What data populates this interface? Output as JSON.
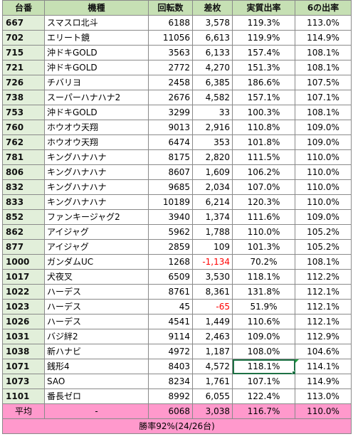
{
  "headers": {
    "num": "台番",
    "model": "機種",
    "spins": "回転数",
    "diff": "差枚",
    "rate": "実質出率",
    "rate6": "6の出率"
  },
  "rows": [
    {
      "num": "667",
      "model": "スマスロ北斗",
      "spins": "6188",
      "diff": "3,578",
      "rate": "119.3%",
      "rate6": "113.0%"
    },
    {
      "num": "702",
      "model": "エリート鏡",
      "spins": "11056",
      "diff": "6,613",
      "rate": "119.9%",
      "rate6": "114.9%"
    },
    {
      "num": "715",
      "model": "沖ドキGOLD",
      "spins": "3563",
      "diff": "6,133",
      "rate": "157.4%",
      "rate6": "108.1%"
    },
    {
      "num": "721",
      "model": "沖ドキGOLD",
      "spins": "2772",
      "diff": "4,270",
      "rate": "151.3%",
      "rate6": "108.1%"
    },
    {
      "num": "726",
      "model": "チバリヨ",
      "spins": "2458",
      "diff": "6,385",
      "rate": "186.6%",
      "rate6": "107.5%"
    },
    {
      "num": "738",
      "model": "スーパーハナハナ2",
      "spins": "2676",
      "diff": "4,582",
      "rate": "157.1%",
      "rate6": "107.1%"
    },
    {
      "num": "753",
      "model": "沖ドキGOLD",
      "spins": "3299",
      "diff": "33",
      "rate": "100.3%",
      "rate6": "108.1%"
    },
    {
      "num": "760",
      "model": "ホウオウ天翔",
      "spins": "9013",
      "diff": "2,916",
      "rate": "110.8%",
      "rate6": "109.0%"
    },
    {
      "num": "762",
      "model": "ホウオウ天翔",
      "spins": "6474",
      "diff": "353",
      "rate": "101.8%",
      "rate6": "109.0%"
    },
    {
      "num": "781",
      "model": "キングハナハナ",
      "spins": "8175",
      "diff": "2,820",
      "rate": "111.5%",
      "rate6": "110.0%"
    },
    {
      "num": "806",
      "model": "キングハナハナ",
      "spins": "8607",
      "diff": "1,609",
      "rate": "106.2%",
      "rate6": "110.0%"
    },
    {
      "num": "832",
      "model": "キングハナハナ",
      "spins": "9685",
      "diff": "2,034",
      "rate": "107.0%",
      "rate6": "110.0%"
    },
    {
      "num": "833",
      "model": "キングハナハナ",
      "spins": "10189",
      "diff": "6,214",
      "rate": "120.3%",
      "rate6": "110.0%"
    },
    {
      "num": "852",
      "model": "ファンキージャグ2",
      "spins": "3940",
      "diff": "1,374",
      "rate": "111.6%",
      "rate6": "109.0%"
    },
    {
      "num": "862",
      "model": "アイジャグ",
      "spins": "5962",
      "diff": "1,788",
      "rate": "110.0%",
      "rate6": "105.2%"
    },
    {
      "num": "877",
      "model": "アイジャグ",
      "spins": "2859",
      "diff": "109",
      "rate": "101.3%",
      "rate6": "105.2%"
    },
    {
      "num": "1000",
      "model": "ガンダムUC",
      "spins": "1268",
      "diff": "-1,134",
      "rate": "70.2%",
      "rate6": "108.1%",
      "neg": true
    },
    {
      "num": "1017",
      "model": "犬夜叉",
      "spins": "6509",
      "diff": "3,530",
      "rate": "118.1%",
      "rate6": "112.2%"
    },
    {
      "num": "1022",
      "model": "ハーデス",
      "spins": "8761",
      "diff": "8,361",
      "rate": "131.8%",
      "rate6": "112.1%"
    },
    {
      "num": "1023",
      "model": "ハーデス",
      "spins": "45",
      "diff": "-65",
      "rate": "51.9%",
      "rate6": "112.1%",
      "neg": true
    },
    {
      "num": "1026",
      "model": "ハーデス",
      "spins": "4541",
      "diff": "1,449",
      "rate": "110.6%",
      "rate6": "112.1%"
    },
    {
      "num": "1031",
      "model": "バジ絆2",
      "spins": "9114",
      "diff": "2,463",
      "rate": "109.0%",
      "rate6": "112.9%"
    },
    {
      "num": "1038",
      "model": "新ハナビ",
      "spins": "4972",
      "diff": "1,187",
      "rate": "108.0%",
      "rate6": "104.6%"
    },
    {
      "num": "1071",
      "model": "銭形4",
      "spins": "8403",
      "diff": "4,572",
      "rate": "118.1%",
      "rate6": "114.1%",
      "selected": true
    },
    {
      "num": "1073",
      "model": "SAO",
      "spins": "8234",
      "diff": "1,761",
      "rate": "107.1%",
      "rate6": "114.9%"
    },
    {
      "num": "1101",
      "model": "番長ゼロ",
      "spins": "8992",
      "diff": "6,055",
      "rate": "122.4%",
      "rate6": "113.0%"
    }
  ],
  "average": {
    "label": "平均",
    "model": "-",
    "spins": "6068",
    "diff": "3,038",
    "rate": "116.7%",
    "rate6": "110.0%"
  },
  "summary": "勝率92%(24/26台)",
  "colors": {
    "header_bg": "#c6e0b4",
    "num_bg": "#e2efda",
    "avg_bg": "#ff99cc",
    "negative": "#ff0000",
    "selection": "#1e7145"
  }
}
